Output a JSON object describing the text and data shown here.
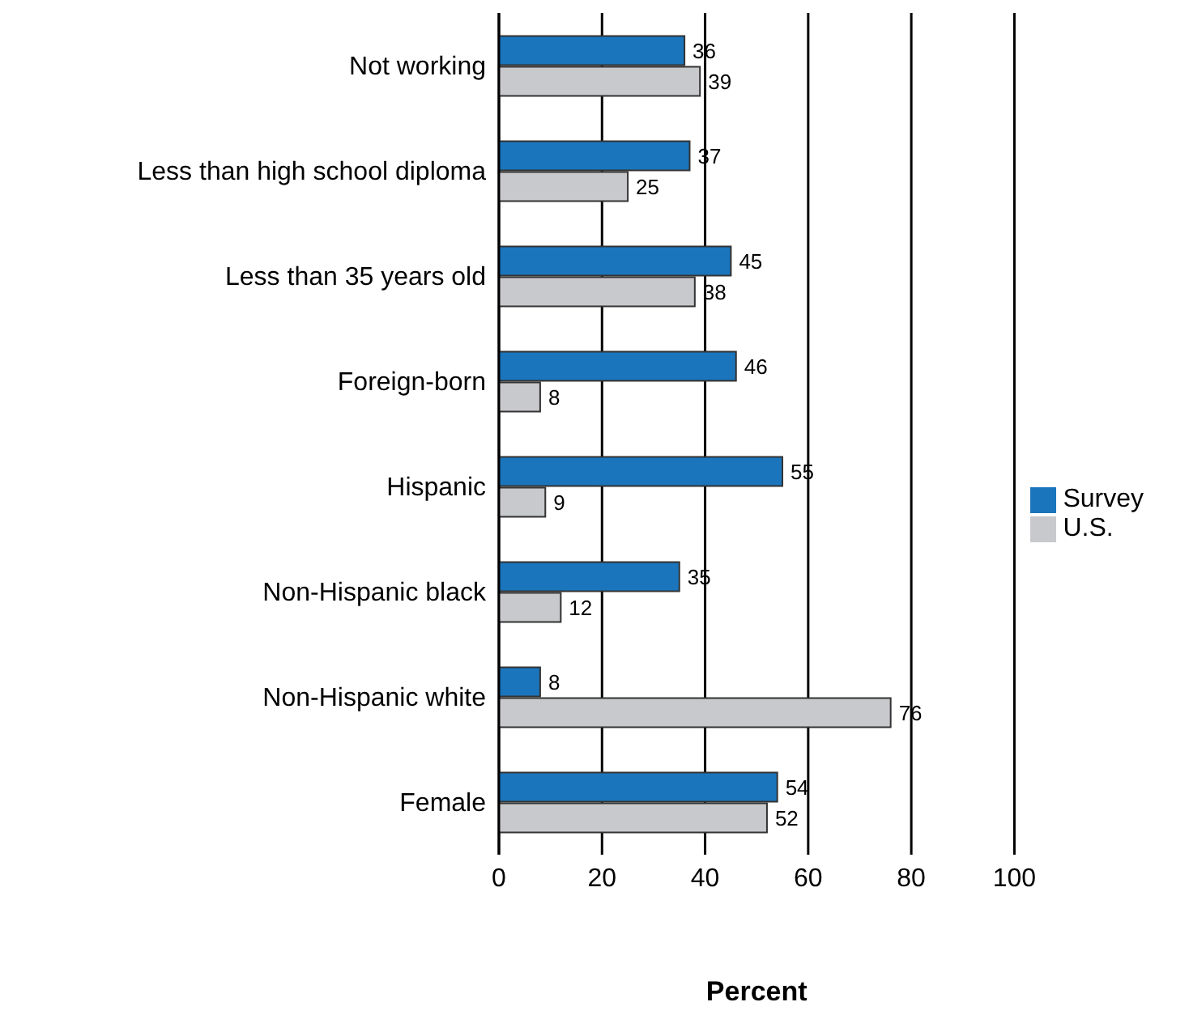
{
  "chart_data": {
    "type": "bar",
    "orientation": "horizontal",
    "xlabel": "Percent",
    "categories": [
      "Not working",
      "Less than high school diploma",
      "Less than 35 years old",
      "Foreign-born",
      "Hispanic",
      "Non-Hispanic black",
      "Non-Hispanic white",
      "Female"
    ],
    "series": [
      {
        "name": "Survey",
        "color": "#1b75bc",
        "values": [
          36,
          37,
          45,
          46,
          55,
          35,
          8,
          54
        ]
      },
      {
        "name": "U.S.",
        "color": "#c8c9cd",
        "values": [
          39,
          25,
          38,
          8,
          9,
          12,
          76,
          52
        ]
      }
    ],
    "xlim": [
      0,
      100
    ],
    "xticks": [
      0,
      20,
      40,
      60,
      80,
      100
    ],
    "grid": "x",
    "legend": "right",
    "data_labels": true
  }
}
